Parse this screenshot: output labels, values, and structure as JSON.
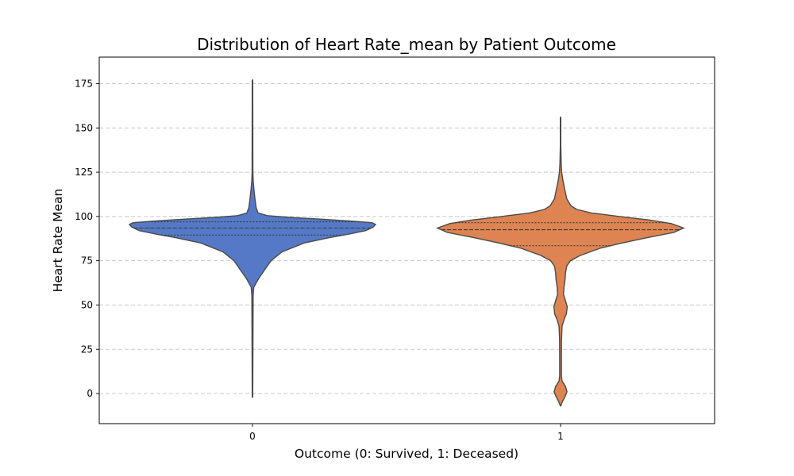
{
  "chart_data": {
    "type": "violin",
    "title": "Distribution of Heart Rate_mean by Patient Outcome",
    "xlabel": "Outcome (0: Survived, 1: Deceased)",
    "ylabel": "Heart Rate Mean",
    "categories": [
      "0",
      "1"
    ],
    "ylim": [
      -17,
      190
    ],
    "yticks": [
      0,
      25,
      50,
      75,
      100,
      125,
      150,
      175
    ],
    "grid": "y",
    "violins": [
      {
        "category": "0",
        "color": "#5579c6",
        "min": -2,
        "max": 177,
        "q1": 89.5,
        "median": 93.5,
        "q3": 97,
        "profile": [
          [
            -2,
            0.002
          ],
          [
            20,
            0.003
          ],
          [
            55,
            0.005
          ],
          [
            60,
            0.01
          ],
          [
            65,
            0.05
          ],
          [
            70,
            0.1
          ],
          [
            75,
            0.15
          ],
          [
            80,
            0.24
          ],
          [
            85,
            0.42
          ],
          [
            88,
            0.62
          ],
          [
            90,
            0.78
          ],
          [
            92,
            0.92
          ],
          [
            94,
            0.98
          ],
          [
            95.5,
            1.0
          ],
          [
            96.5,
            0.97
          ],
          [
            97.5,
            0.78
          ],
          [
            98.5,
            0.55
          ],
          [
            99.5,
            0.3
          ],
          [
            100.5,
            0.12
          ],
          [
            102,
            0.045
          ],
          [
            105,
            0.03
          ],
          [
            110,
            0.02
          ],
          [
            115,
            0.012
          ],
          [
            120,
            0.006
          ],
          [
            125,
            0.003
          ],
          [
            177,
            0.002
          ]
        ]
      },
      {
        "category": "1",
        "color": "#dd8452",
        "min": -7,
        "max": 156,
        "q1": 83.5,
        "median": 92.5,
        "q3": 96.5,
        "profile": [
          [
            -7,
            0.002
          ],
          [
            -5,
            0.012
          ],
          [
            -2,
            0.035
          ],
          [
            1,
            0.052
          ],
          [
            4,
            0.04
          ],
          [
            7,
            0.012
          ],
          [
            10,
            0.007
          ],
          [
            20,
            0.007
          ],
          [
            30,
            0.008
          ],
          [
            38,
            0.012
          ],
          [
            42,
            0.03
          ],
          [
            45,
            0.048
          ],
          [
            49,
            0.054
          ],
          [
            52,
            0.042
          ],
          [
            56,
            0.024
          ],
          [
            60,
            0.028
          ],
          [
            64,
            0.036
          ],
          [
            68,
            0.04
          ],
          [
            72,
            0.05
          ],
          [
            75,
            0.08
          ],
          [
            78,
            0.16
          ],
          [
            82,
            0.32
          ],
          [
            85,
            0.5
          ],
          [
            88,
            0.7
          ],
          [
            91,
            0.92
          ],
          [
            93.5,
            1.0
          ],
          [
            96,
            0.9
          ],
          [
            98,
            0.72
          ],
          [
            100,
            0.48
          ],
          [
            102,
            0.25
          ],
          [
            104,
            0.13
          ],
          [
            106,
            0.085
          ],
          [
            110,
            0.05
          ],
          [
            115,
            0.035
          ],
          [
            120,
            0.02
          ],
          [
            125,
            0.009
          ],
          [
            130,
            0.005
          ],
          [
            140,
            0.002
          ],
          [
            156,
            0.002
          ]
        ]
      }
    ]
  }
}
